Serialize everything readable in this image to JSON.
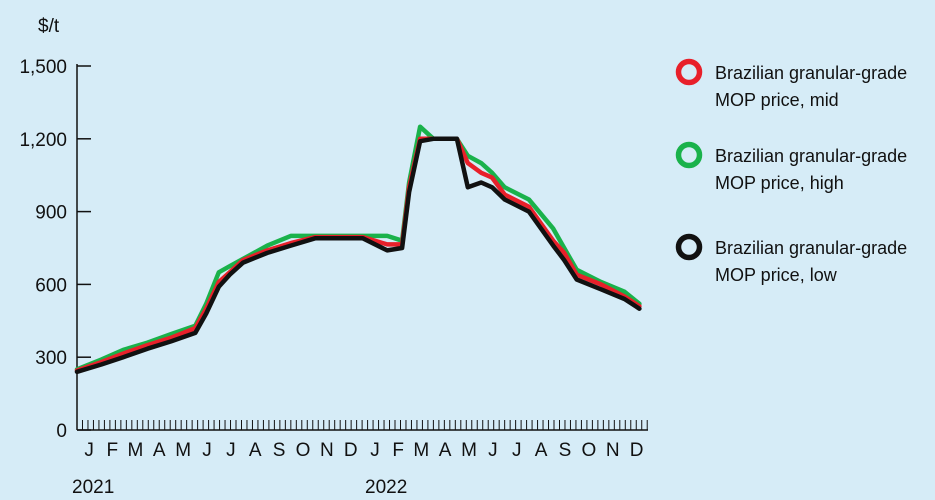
{
  "chart_data": {
    "type": "line",
    "ylabel": "$/t",
    "ylim": [
      0,
      1500
    ],
    "yticks": [
      0,
      300,
      600,
      900,
      1200,
      1500
    ],
    "ytick_labels": [
      "0",
      "300",
      "600",
      "900",
      "1,200",
      "1,500"
    ],
    "xlim": [
      "2021-01-01",
      "2022-12-31"
    ],
    "months": [
      "J",
      "F",
      "M",
      "A",
      "M",
      "J",
      "J",
      "A",
      "S",
      "O",
      "N",
      "D",
      "J",
      "F",
      "M",
      "A",
      "M",
      "J",
      "J",
      "A",
      "S",
      "O",
      "N",
      "D"
    ],
    "years": [
      "2021",
      "2022"
    ],
    "x": [
      "2021-01-01",
      "2021-02-01",
      "2021-03-01",
      "2021-04-01",
      "2021-05-01",
      "2021-06-01",
      "2021-06-15",
      "2021-07-01",
      "2021-07-15",
      "2021-08-01",
      "2021-09-01",
      "2021-10-01",
      "2021-11-01",
      "2021-12-01",
      "2022-01-01",
      "2022-02-01",
      "2022-02-20",
      "2022-03-01",
      "2022-03-15",
      "2022-04-01",
      "2022-05-01",
      "2022-05-15",
      "2022-06-01",
      "2022-06-15",
      "2022-07-01",
      "2022-08-01",
      "2022-09-01",
      "2022-09-15",
      "2022-10-01",
      "2022-11-01",
      "2022-12-01",
      "2022-12-20"
    ],
    "series": [
      {
        "name": "Brazilian granular-grade MOP price, mid",
        "color": "#e8202a",
        "values": [
          245,
          280,
          315,
          350,
          380,
          420,
          500,
          610,
          650,
          700,
          740,
          770,
          795,
          795,
          795,
          765,
          765,
          1000,
          1200,
          1200,
          1200,
          1100,
          1060,
          1040,
          970,
          920,
          780,
          730,
          640,
          600,
          550,
          510
        ]
      },
      {
        "name": "Brazilian granular-grade MOP price, high",
        "color": "#1ab24b",
        "values": [
          250,
          290,
          330,
          360,
          395,
          430,
          520,
          650,
          675,
          705,
          760,
          800,
          800,
          800,
          800,
          800,
          780,
          1020,
          1250,
          1200,
          1200,
          1130,
          1100,
          1060,
          1000,
          950,
          830,
          750,
          660,
          610,
          570,
          520
        ]
      },
      {
        "name": "Brazilian granular-grade MOP price, low",
        "color": "#111111",
        "values": [
          240,
          270,
          300,
          335,
          365,
          400,
          480,
          590,
          640,
          690,
          730,
          760,
          790,
          790,
          790,
          740,
          750,
          980,
          1190,
          1200,
          1200,
          1000,
          1020,
          1000,
          950,
          900,
          760,
          700,
          620,
          580,
          540,
          500
        ]
      }
    ],
    "legend_position": "right",
    "grid": false
  }
}
